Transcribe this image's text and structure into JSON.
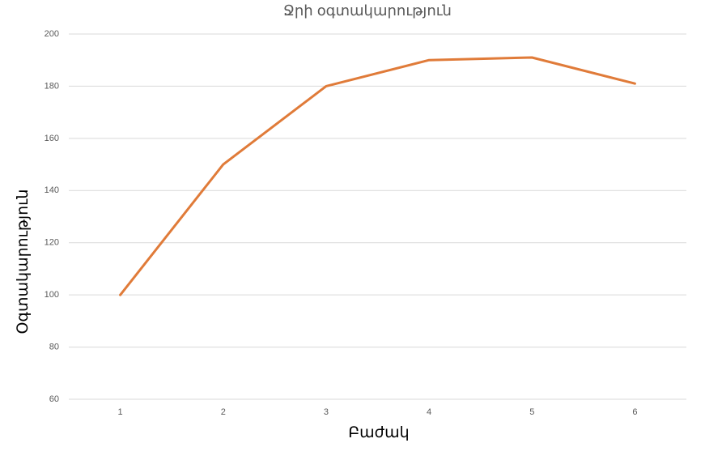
{
  "chart_data": {
    "type": "line",
    "title": "Ջրի օգտակարություն",
    "x_label": "Բաժակ",
    "y_label": "Օգտակարություն",
    "categories": [
      "1",
      "2",
      "3",
      "4",
      "5",
      "6"
    ],
    "values": [
      100,
      150,
      180,
      190,
      191,
      181
    ],
    "color": "#e07b39",
    "ylim": [
      60,
      200
    ],
    "yticks": [
      60,
      80,
      100,
      120,
      140,
      160,
      180,
      200
    ],
    "grid": true
  }
}
